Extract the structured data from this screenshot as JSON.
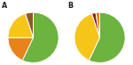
{
  "chart_data": [
    {
      "type": "pie",
      "title": "A",
      "values": [
        57,
        18,
        20,
        5
      ],
      "colors": [
        "#6db33f",
        "#e8821a",
        "#f5c518",
        "#8B5A2B"
      ]
    },
    {
      "type": "pie",
      "title": "B",
      "values": [
        57,
        38,
        2.5,
        2.5
      ],
      "colors": [
        "#6db33f",
        "#f5c518",
        "#8B1A1A",
        "#e8821a"
      ]
    }
  ]
}
